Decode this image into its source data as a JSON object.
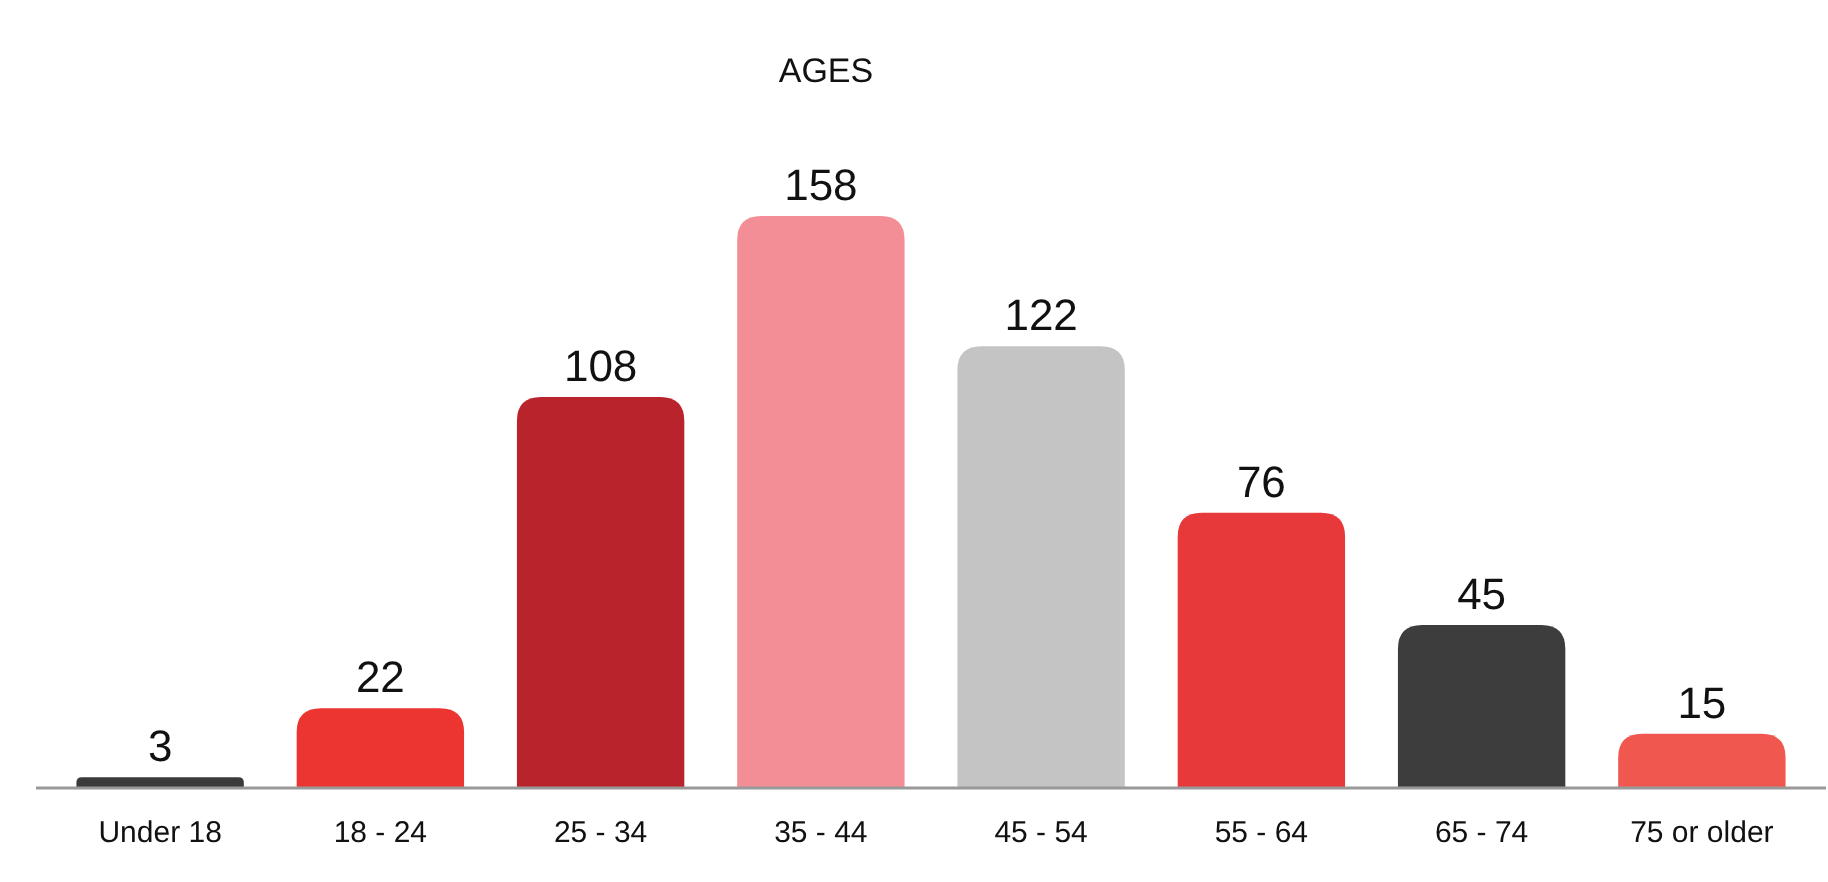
{
  "chart_data": {
    "type": "bar",
    "title": "AGES",
    "categories": [
      "Under 18",
      "18 - 24",
      "25 - 34",
      "35 - 44",
      "45 - 54",
      "55 - 64",
      "65 - 74",
      "75 or older"
    ],
    "values": [
      3,
      22,
      108,
      158,
      122,
      76,
      45,
      15
    ],
    "colors": [
      "#3a3a3a",
      "#ec3530",
      "#b9232b",
      "#f38e96",
      "#c4c4c4",
      "#e8393a",
      "#3d3d3d",
      "#f0574f"
    ],
    "data_labels": true
  }
}
